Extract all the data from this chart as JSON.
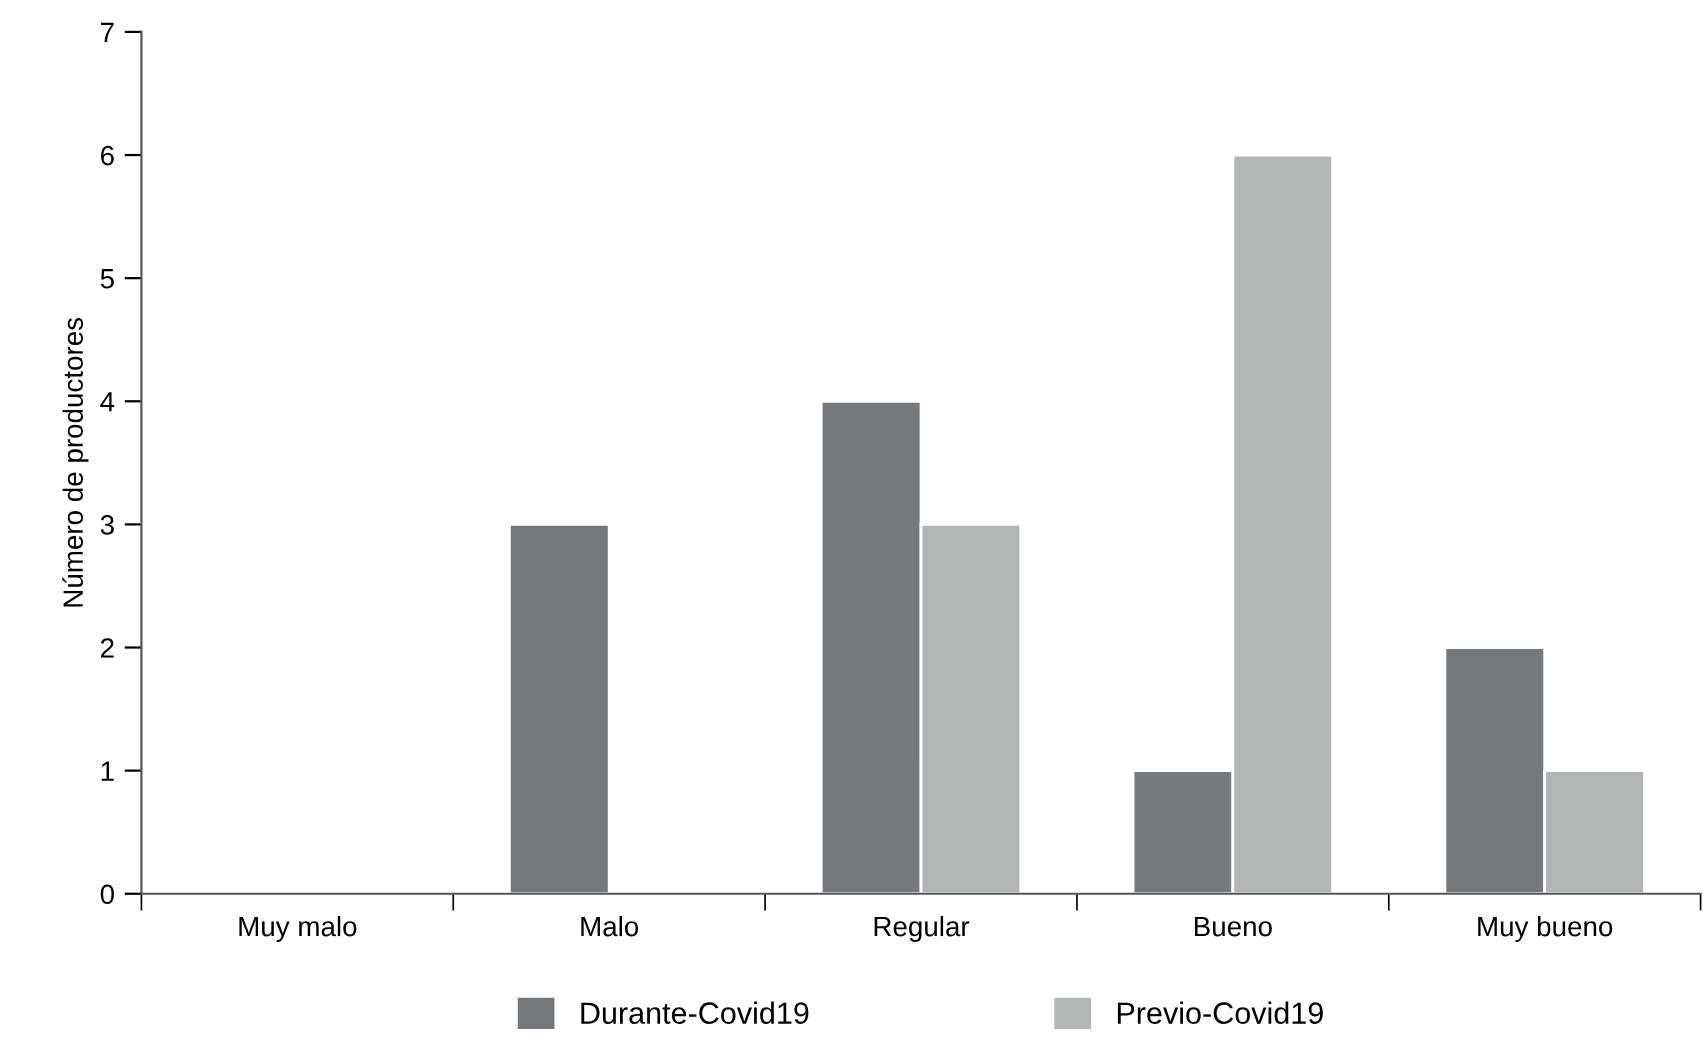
{
  "chart_data": {
    "type": "bar",
    "ylabel": "Número de productores",
    "categories": [
      "Muy malo",
      "Malo",
      "Regular",
      "Bueno",
      "Muy bueno"
    ],
    "series": [
      {
        "name": "Durante-Covid19",
        "color": "#76787b",
        "values": [
          0,
          3,
          4,
          1,
          2
        ]
      },
      {
        "name": "Previo-Covid19",
        "color": "#b3b5b5",
        "values": [
          0,
          0,
          3,
          6,
          1
        ]
      }
    ],
    "ylim": [
      0,
      7
    ],
    "yticks": [
      0,
      1,
      2,
      3,
      4,
      5,
      6,
      7
    ],
    "grid": false,
    "legend": "bottom"
  }
}
